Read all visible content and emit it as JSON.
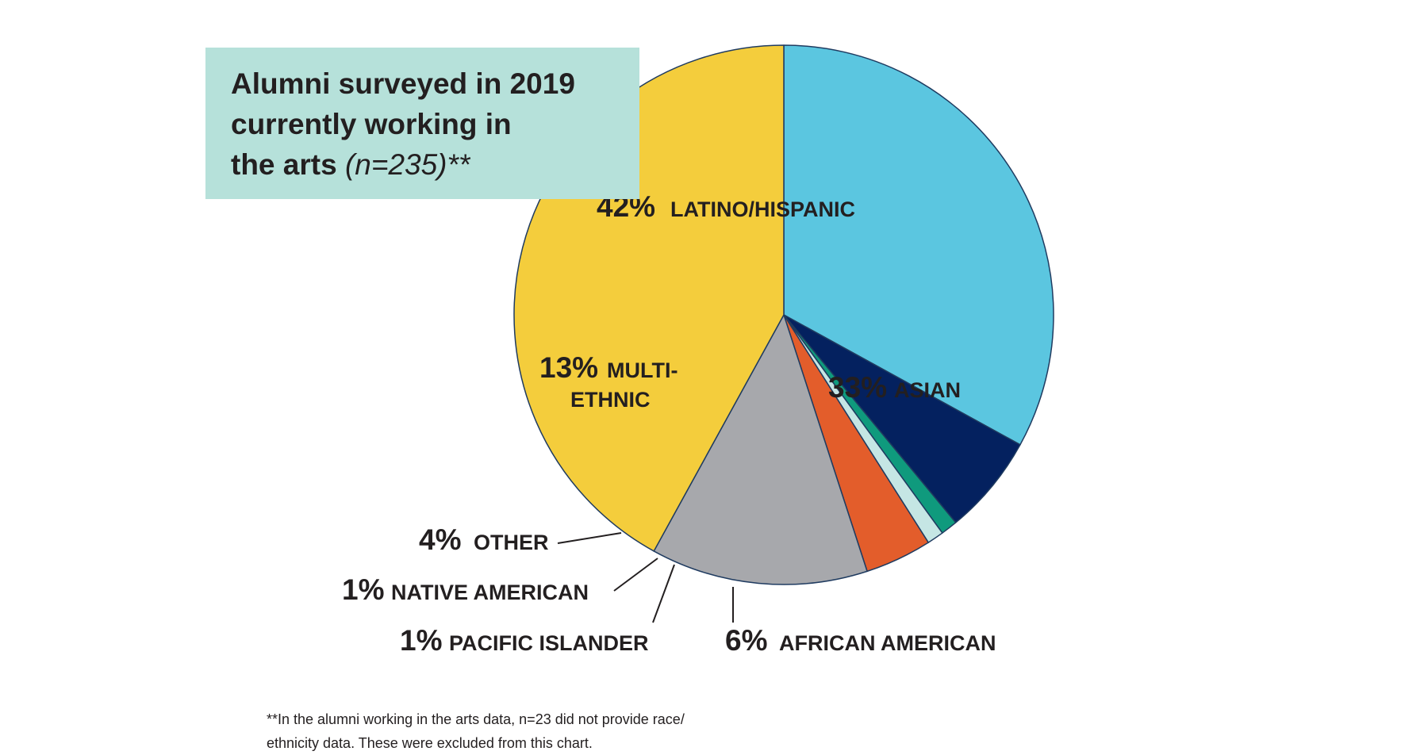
{
  "title": {
    "line1": "Alumni surveyed in 2019",
    "line2": "currently working in",
    "line3": "the arts",
    "n_note": "(n=235)**"
  },
  "footnote": {
    "line1": "**In the alumni working in the arts data, n=23 did not provide race/",
    "line2": "ethnicity data. These were excluded from this chart."
  },
  "chart_data": {
    "type": "pie",
    "title": "Alumni surveyed in 2019 currently working in the arts (n=235)**",
    "start": "12 o'clock",
    "direction": "clockwise",
    "slices": [
      {
        "label": "ASIAN",
        "pct_text": "33%",
        "value": 33,
        "color": "#5bc6e0"
      },
      {
        "label": "AFRICAN AMERICAN",
        "pct_text": "6%",
        "value": 6,
        "color": "#04215f"
      },
      {
        "label": "PACIFIC ISLANDER",
        "pct_text": "1%",
        "value": 1,
        "color": "#0f9a7d"
      },
      {
        "label": "NATIVE AMERICAN",
        "pct_text": "1%",
        "value": 1,
        "color": "#c5e6e4"
      },
      {
        "label": "OTHER",
        "pct_text": "4%",
        "value": 4,
        "color": "#e35d2b"
      },
      {
        "label": "MULTI-ETHNIC",
        "pct_text": "13%",
        "value": 13,
        "color": "#a7a8ac"
      },
      {
        "label": "LATINO/HISPANIC",
        "pct_text": "42%",
        "value": 42,
        "color": "#f4cd3c"
      }
    ],
    "outline_color": "#1f3b60"
  }
}
